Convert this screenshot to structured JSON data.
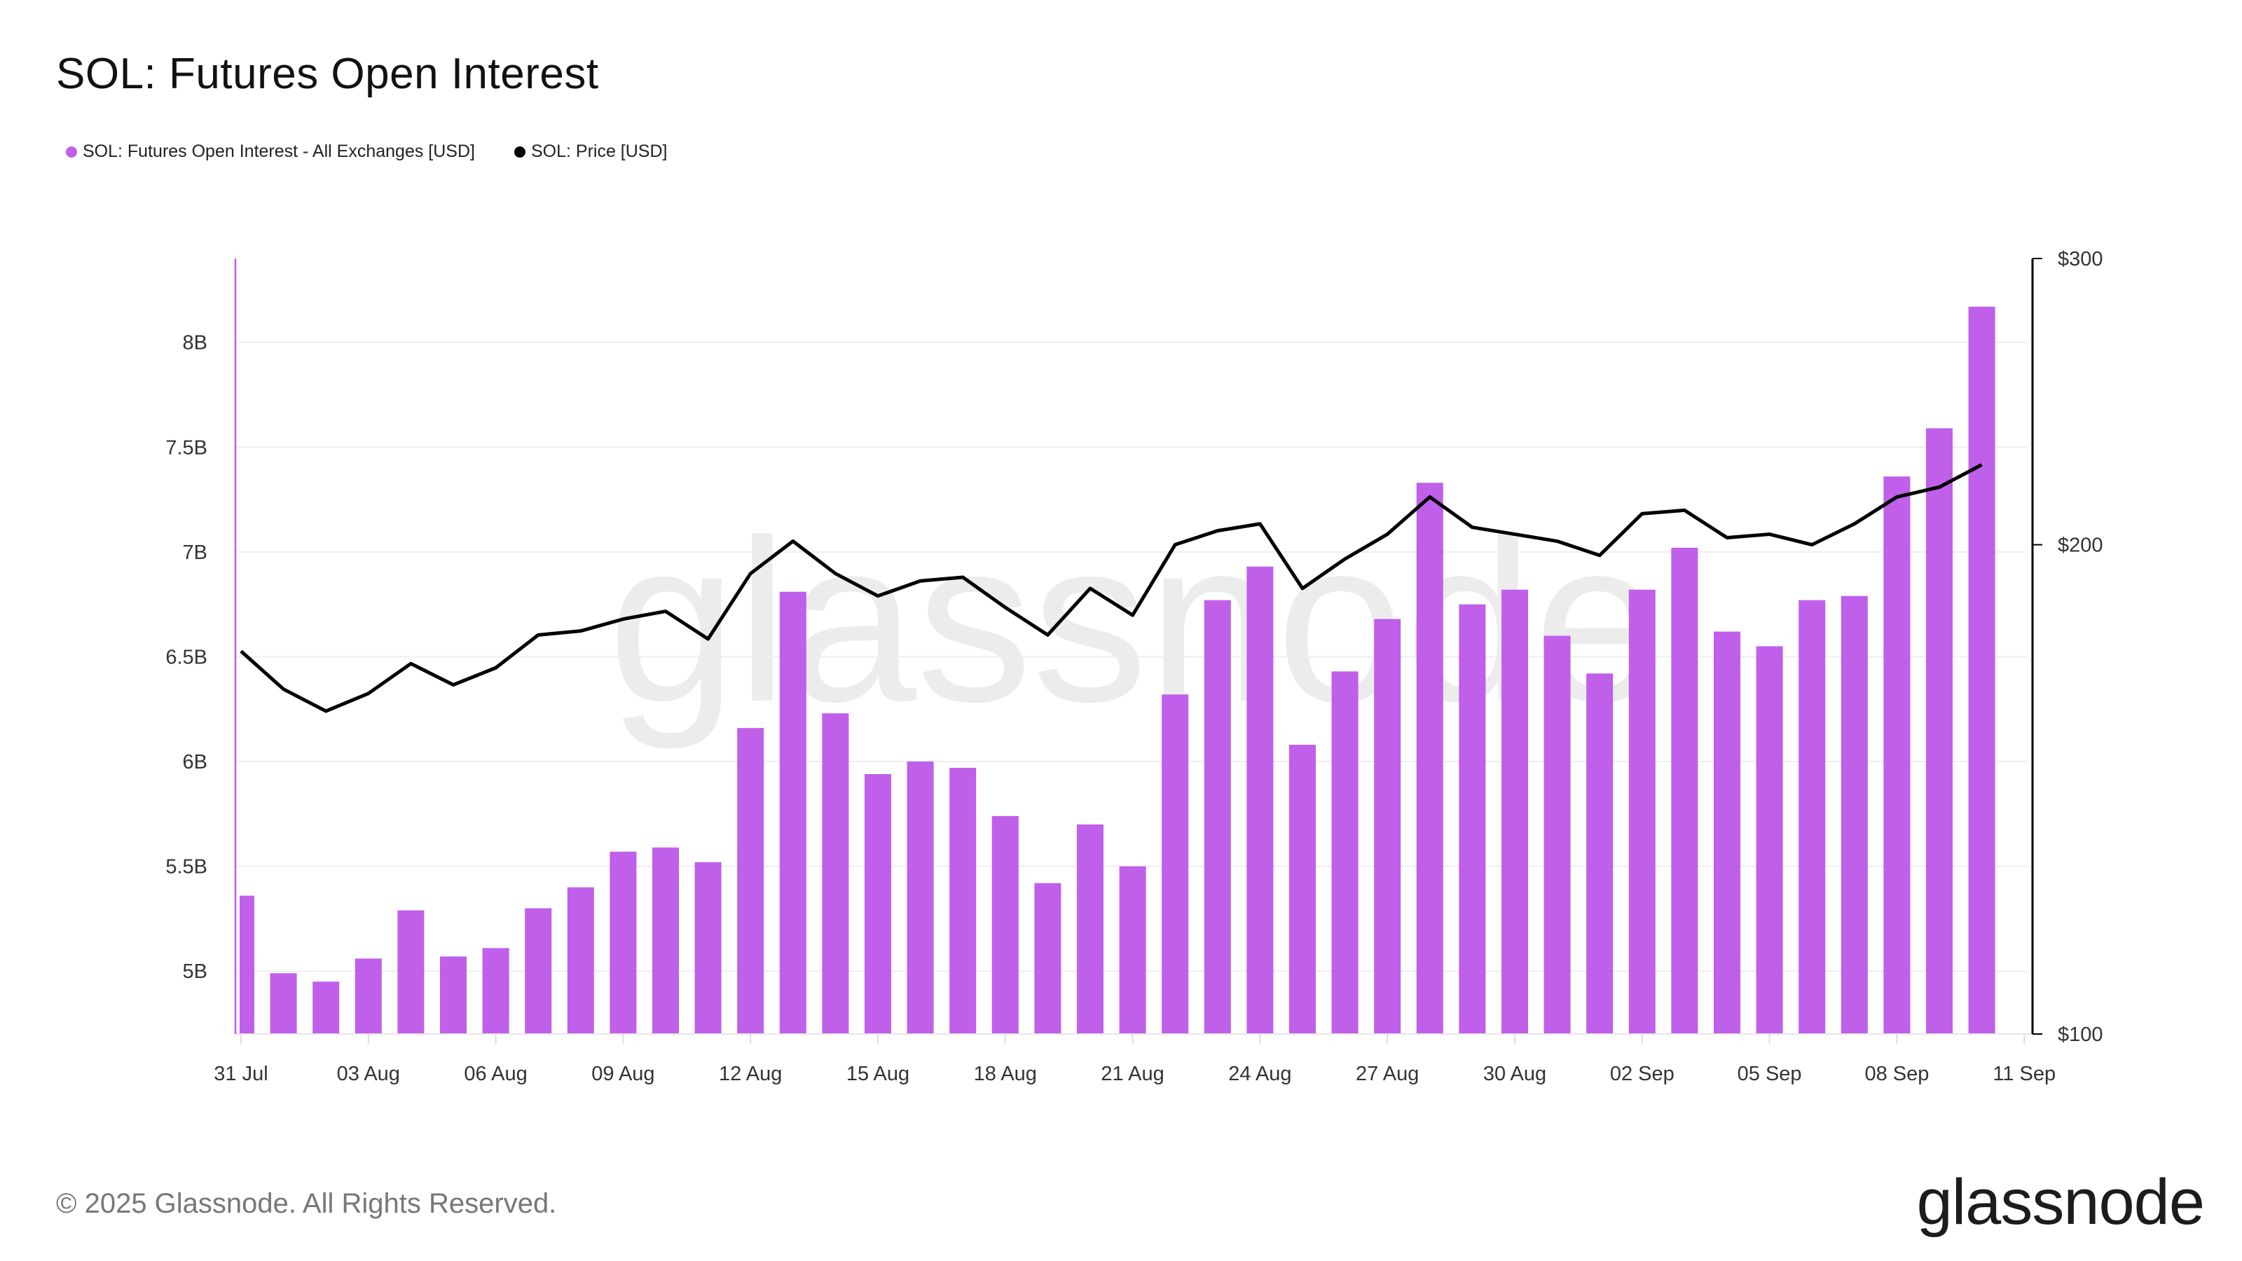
{
  "title": "SOL: Futures Open Interest",
  "footer": "© 2025 Glassnode. All Rights Reserved.",
  "logo": "glassnode",
  "watermark": "glassnode",
  "colors": {
    "bar": "#bf5fea",
    "line": "#000000",
    "grid": "#eeeeee",
    "left_axis": "#bf5fea",
    "right_axis": "#000000"
  },
  "chart_data": {
    "type": "bar+line",
    "title": "SOL: Futures Open Interest",
    "legend_position": "top-left",
    "grid": true,
    "x": [
      "31 Jul",
      "01 Aug",
      "02 Aug",
      "03 Aug",
      "04 Aug",
      "05 Aug",
      "06 Aug",
      "07 Aug",
      "08 Aug",
      "09 Aug",
      "10 Aug",
      "11 Aug",
      "12 Aug",
      "13 Aug",
      "14 Aug",
      "15 Aug",
      "16 Aug",
      "17 Aug",
      "18 Aug",
      "19 Aug",
      "20 Aug",
      "21 Aug",
      "22 Aug",
      "23 Aug",
      "24 Aug",
      "25 Aug",
      "26 Aug",
      "27 Aug",
      "28 Aug",
      "29 Aug",
      "30 Aug",
      "31 Aug",
      "01 Sep",
      "02 Sep",
      "03 Sep",
      "04 Sep",
      "05 Sep",
      "06 Sep",
      "07 Sep",
      "08 Sep",
      "09 Sep",
      "10 Sep"
    ],
    "x_ticks": [
      "31 Jul",
      "03 Aug",
      "06 Aug",
      "09 Aug",
      "12 Aug",
      "15 Aug",
      "18 Aug",
      "21 Aug",
      "24 Aug",
      "27 Aug",
      "30 Aug",
      "02 Sep",
      "05 Sep",
      "08 Sep",
      "11 Sep"
    ],
    "series": [
      {
        "name": "SOL: Futures Open Interest - All Exchanges [USD]",
        "type": "bar",
        "axis": "left",
        "unit": "B",
        "values": [
          5.36,
          4.99,
          4.95,
          5.06,
          5.29,
          5.07,
          5.11,
          5.3,
          5.4,
          5.57,
          5.59,
          5.52,
          6.16,
          6.81,
          6.23,
          5.94,
          6.0,
          5.97,
          5.74,
          5.42,
          5.7,
          5.5,
          6.32,
          6.77,
          6.93,
          6.08,
          6.43,
          6.68,
          7.33,
          6.75,
          6.82,
          6.6,
          6.42,
          6.82,
          7.02,
          6.62,
          6.55,
          6.77,
          6.79,
          7.36,
          7.59,
          8.17
        ]
      },
      {
        "name": "SOL: Price [USD]",
        "type": "line",
        "axis": "right",
        "values": [
          172,
          163,
          158,
          162,
          169,
          164,
          168,
          176,
          177,
          180,
          182,
          175,
          192,
          201,
          192,
          186,
          190,
          191,
          183,
          176,
          188,
          181,
          200,
          204,
          206,
          188,
          196,
          203,
          214,
          205,
          203,
          201,
          197,
          209,
          210,
          202,
          203,
          200,
          206,
          214,
          217,
          224
        ]
      }
    ],
    "y_left": {
      "ticks": [
        "5B",
        "5.5B",
        "6B",
        "6.5B",
        "7B",
        "7.5B",
        "8B"
      ],
      "tick_values": [
        5,
        5.5,
        6,
        6.5,
        7,
        7.5,
        8
      ],
      "range": [
        4.7,
        8.4
      ],
      "scale": "linear"
    },
    "y_right": {
      "ticks": [
        "$100",
        "$200",
        "$300"
      ],
      "tick_values": [
        100,
        200,
        300
      ],
      "range": [
        100,
        300
      ],
      "scale": "log"
    }
  }
}
